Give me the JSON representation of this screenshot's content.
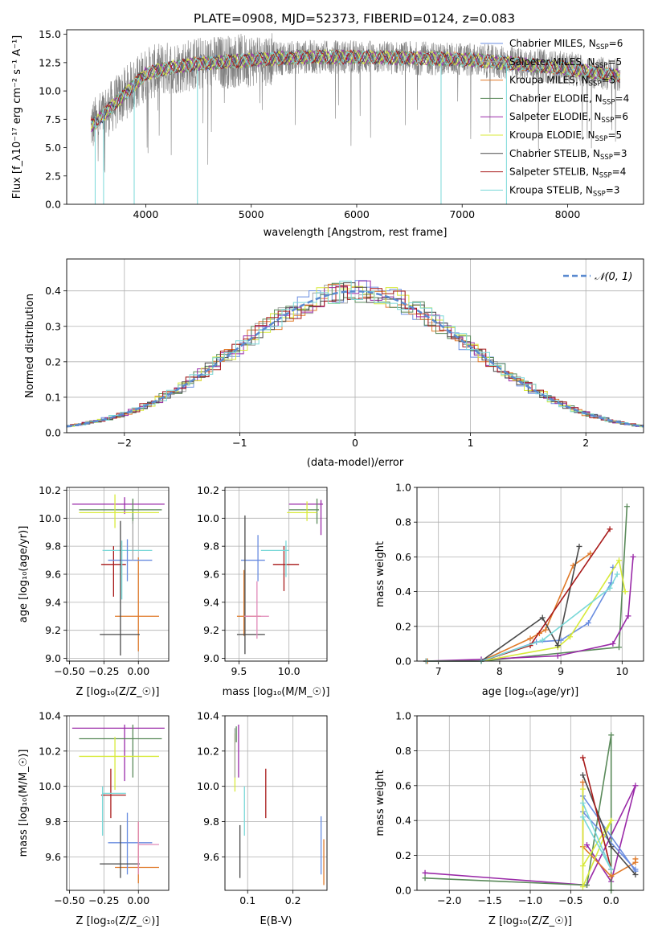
{
  "figure_title": "PLATE=0908, MJD=52373, FIBERID=0124, z=0.083",
  "colors": {
    "ch_miles": "#6a8de0",
    "sa_miles": "#a4a4a4",
    "kr_miles": "#e07a2a",
    "ch_elodie": "#5a8a5a",
    "sa_elodie": "#9a2aa8",
    "kr_elodie": "#d8ea3a",
    "ch_stelib": "#4a4a4a",
    "sa_stelib": "#a81a1a",
    "kr_stelib": "#7ad8d8",
    "spectrum": "#808080",
    "gaussian": "#5a8ad0"
  },
  "chart_data": [
    {
      "id": "spectrum",
      "type": "line",
      "title": "PLATE=0908, MJD=52373, FIBERID=0124, z=0.083",
      "xlabel": "wavelength [Angstrom, rest frame]",
      "ylabel": "Flux [f_λ10⁻¹⁷ erg cm⁻² s⁻¹ A⁻¹]",
      "xlim": [
        3250,
        8720
      ],
      "ylim": [
        0,
        15.4
      ],
      "xticks": [
        "4000",
        "5000",
        "6000",
        "7000",
        "8000"
      ],
      "yticks": [
        "0.0",
        "2.5",
        "5.0",
        "7.5",
        "10.0",
        "12.5",
        "15.0"
      ],
      "continuum": {
        "x": [
          3500,
          3700,
          3850,
          4000,
          4200,
          4500,
          4800,
          5100,
          5500,
          6000,
          6500,
          7000,
          7500,
          8000,
          8500
        ],
        "y": [
          7.0,
          8.8,
          10.2,
          11.5,
          12.0,
          12.4,
          12.6,
          12.8,
          13.0,
          13.0,
          12.9,
          12.8,
          12.4,
          12.0,
          11.3
        ]
      },
      "legend_position": "right",
      "legend": [
        {
          "name": "Chabrier MILES, N",
          "sub": "SSP",
          "suffix": "=6",
          "color": "#6a8de0"
        },
        {
          "name": "Salpeter MILES, N",
          "sub": "SSP",
          "suffix": "=5",
          "color": "#a4a4a4"
        },
        {
          "name": "Kroupa MILES, N",
          "sub": "SSP",
          "suffix": "=5",
          "color": "#e07a2a"
        },
        {
          "name": "Chabrier ELODIE, N",
          "sub": "SSP",
          "suffix": "=4",
          "color": "#5a8a5a"
        },
        {
          "name": "Salpeter ELODIE, N",
          "sub": "SSP",
          "suffix": "=6",
          "color": "#9a2aa8"
        },
        {
          "name": "Kroupa ELODIE, N",
          "sub": "SSP",
          "suffix": "=5",
          "color": "#d8ea3a"
        },
        {
          "name": "Chabrier STELIB, N",
          "sub": "SSP",
          "suffix": "=3",
          "color": "#4a4a4a"
        },
        {
          "name": "Salpeter STELIB, N",
          "sub": "SSP",
          "suffix": "=4",
          "color": "#a81a1a"
        },
        {
          "name": "Kroupa STELIB, N",
          "sub": "SSP",
          "suffix": "=3",
          "color": "#7ad8d8"
        }
      ]
    },
    {
      "id": "residuals",
      "type": "step",
      "xlabel": "(data-model)/error",
      "ylabel": "Normed distribution",
      "xlim": [
        -2.5,
        2.5
      ],
      "ylim": [
        0,
        0.49
      ],
      "grid": true,
      "xticks": [
        "−2",
        "−1",
        "0",
        "1",
        "2"
      ],
      "yticks": [
        "0.0",
        "0.1",
        "0.2",
        "0.3",
        "0.4"
      ],
      "legend_label": "𝒩(0, 1)",
      "bin_width": 0.1
    },
    {
      "id": "age_vs_Z",
      "type": "errorbar",
      "xlabel": "Z [log₁₀(Z/Z_☉)]",
      "ylabel": "age [log₁₀(age/yr)]",
      "xlim": [
        -0.52,
        0.22
      ],
      "ylim": [
        8.98,
        10.22
      ],
      "grid": true,
      "xticks": [
        "−0.50",
        "−0.25",
        "0.00"
      ],
      "yticks": [
        "9.0",
        "9.2",
        "9.4",
        "9.6",
        "9.8",
        "10.0",
        "10.2"
      ],
      "points": [
        {
          "c": "#9a2aa8",
          "x": -0.1,
          "y": 10.1,
          "xl": -0.48,
          "xh": 0.19,
          "yl": 10.03,
          "yh": 10.15
        },
        {
          "c": "#5a8a5a",
          "x": -0.04,
          "y": 10.06,
          "xl": -0.43,
          "xh": 0.17,
          "yl": 9.96,
          "yh": 10.14
        },
        {
          "c": "#d8ea3a",
          "x": -0.17,
          "y": 10.04,
          "xl": -0.43,
          "xh": 0.15,
          "yl": 9.93,
          "yh": 10.17
        },
        {
          "c": "#e07a2a",
          "x": 0.0,
          "y": 9.3,
          "xl": -0.17,
          "xh": 0.15,
          "yl": 9.05,
          "yh": 9.72
        },
        {
          "c": "#a81a1a",
          "x": -0.18,
          "y": 9.67,
          "xl": -0.27,
          "xh": -0.09,
          "yl": 9.44,
          "yh": 9.8
        },
        {
          "c": "#7ad8d8",
          "x": -0.12,
          "y": 9.77,
          "xl": -0.26,
          "xh": 0.1,
          "yl": 9.42,
          "yh": 9.84
        },
        {
          "c": "#6a8de0",
          "x": -0.08,
          "y": 9.7,
          "xl": -0.22,
          "xh": 0.1,
          "yl": 9.55,
          "yh": 9.85
        },
        {
          "c": "#4a4a4a",
          "x": -0.13,
          "y": 9.17,
          "xl": -0.28,
          "xh": 0.01,
          "yl": 9.02,
          "yh": 9.98
        },
        {
          "c": "#a4a4a4",
          "x": -0.04,
          "y": 9.85,
          "xl": -0.04,
          "xh": -0.04,
          "yl": 9.7,
          "yh": 9.98
        }
      ]
    },
    {
      "id": "age_vs_mass",
      "type": "errorbar",
      "xlabel": "mass [log₁₀(M/M_☉)]",
      "ylabel": "",
      "xlim": [
        9.36,
        10.38
      ],
      "ylim": [
        8.98,
        10.22
      ],
      "grid": true,
      "xticks": [
        "9.5",
        "10.0"
      ],
      "yticks": [
        "9.0",
        "9.2",
        "9.4",
        "9.6",
        "9.8",
        "10.0",
        "10.2"
      ],
      "points": [
        {
          "c": "#9a2aa8",
          "x": 10.32,
          "y": 10.1,
          "xl": 10.0,
          "xh": 10.34,
          "yl": 9.88,
          "yh": 10.13
        },
        {
          "c": "#5a8a5a",
          "x": 10.28,
          "y": 10.06,
          "xl": 10.0,
          "xh": 10.3,
          "yl": 9.96,
          "yh": 10.14
        },
        {
          "c": "#d8ea3a",
          "x": 10.18,
          "y": 10.04,
          "xl": 9.98,
          "xh": 10.28,
          "yl": 9.98,
          "yh": 10.12
        },
        {
          "c": "#e07a2a",
          "x": 9.55,
          "y": 9.3,
          "xl": 9.48,
          "xh": 9.72,
          "yl": 9.16,
          "yh": 9.63
        },
        {
          "c": "#a81a1a",
          "x": 9.95,
          "y": 9.67,
          "xl": 9.84,
          "xh": 10.1,
          "yl": 9.48,
          "yh": 9.8
        },
        {
          "c": "#7ad8d8",
          "x": 9.97,
          "y": 9.77,
          "xl": 9.72,
          "xh": 10.0,
          "yl": 9.58,
          "yh": 9.84
        },
        {
          "c": "#6a8de0",
          "x": 9.69,
          "y": 9.7,
          "xl": 9.52,
          "xh": 9.76,
          "yl": 9.55,
          "yh": 9.88
        },
        {
          "c": "#4a4a4a",
          "x": 9.56,
          "y": 9.17,
          "xl": 9.48,
          "xh": 9.76,
          "yl": 9.03,
          "yh": 10.02
        },
        {
          "c": "#e08ab8",
          "x": 9.68,
          "y": 9.3,
          "xl": 9.55,
          "xh": 9.8,
          "yl": 9.14,
          "yh": 9.55
        }
      ]
    },
    {
      "id": "weight_vs_age",
      "type": "line",
      "xlabel": "age [log₁₀(age/yr)]",
      "ylabel": "mass weight",
      "xlim": [
        6.65,
        10.35
      ],
      "ylim": [
        0,
        1.0
      ],
      "grid": true,
      "xticks": [
        "7",
        "8",
        "9",
        "10"
      ],
      "yticks": [
        "0.0",
        "0.2",
        "0.4",
        "0.6",
        "0.8",
        "1.0"
      ],
      "series": [
        {
          "c": "#6a8de0",
          "x": [
            6.8,
            7.7,
            8.6,
            9.0,
            9.45,
            9.82,
            9.85
          ],
          "y": [
            0.0,
            0.0,
            0.11,
            0.12,
            0.22,
            0.45,
            0.54
          ]
        },
        {
          "c": "#e07a2a",
          "x": [
            6.82,
            7.7,
            8.5,
            8.65,
            8.75,
            9.2,
            9.48
          ],
          "y": [
            0.0,
            0.0,
            0.13,
            0.16,
            0.18,
            0.55,
            0.62
          ]
        },
        {
          "c": "#5a8a5a",
          "x": [
            6.8,
            7.7,
            9.95,
            10.08
          ],
          "y": [
            0.0,
            0.0,
            0.08,
            0.89
          ]
        },
        {
          "c": "#9a2aa8",
          "x": [
            6.8,
            7.7,
            8.95,
            9.85,
            10.1,
            10.18
          ],
          "y": [
            0.0,
            0.01,
            0.03,
            0.1,
            0.26,
            0.6
          ]
        },
        {
          "c": "#d8ea3a",
          "x": [
            6.8,
            7.7,
            8.95,
            9.15,
            9.95,
            10.05
          ],
          "y": [
            0.0,
            0.0,
            0.08,
            0.14,
            0.58,
            0.4
          ]
        },
        {
          "c": "#4a4a4a",
          "x": [
            6.8,
            7.7,
            8.7,
            8.95,
            9.3
          ],
          "y": [
            0.0,
            0.0,
            0.25,
            0.09,
            0.66
          ]
        },
        {
          "c": "#a81a1a",
          "x": [
            6.8,
            7.7,
            8.5,
            9.8
          ],
          "y": [
            0.0,
            0.0,
            0.09,
            0.76
          ]
        },
        {
          "c": "#7ad8d8",
          "x": [
            6.8,
            7.7,
            8.7,
            9.8,
            9.92
          ],
          "y": [
            0.0,
            0.0,
            0.12,
            0.42,
            0.5
          ]
        }
      ]
    },
    {
      "id": "mass_vs_Z",
      "type": "errorbar",
      "xlabel": "Z [log₁₀(Z/Z_☉)]",
      "ylabel": "mass [log₁₀(M/M_☉)]",
      "xlim": [
        -0.52,
        0.22
      ],
      "ylim": [
        9.41,
        10.4
      ],
      "grid": true,
      "xticks": [
        "−0.50",
        "−0.25",
        "0.00"
      ],
      "yticks": [
        "9.6",
        "9.8",
        "10.0",
        "10.2",
        "10.4"
      ],
      "points": [
        {
          "c": "#9a2aa8",
          "x": -0.1,
          "y": 10.33,
          "xl": -0.48,
          "xh": 0.19,
          "yl": 10.03,
          "yh": 10.35
        },
        {
          "c": "#5a8a5a",
          "x": -0.04,
          "y": 10.27,
          "xl": -0.43,
          "xh": 0.17,
          "yl": 10.05,
          "yh": 10.35
        },
        {
          "c": "#d8ea3a",
          "x": -0.17,
          "y": 10.17,
          "xl": -0.43,
          "xh": 0.15,
          "yl": 9.98,
          "yh": 10.28
        },
        {
          "c": "#e07a2a",
          "x": 0.0,
          "y": 9.54,
          "xl": -0.17,
          "xh": 0.15,
          "yl": 9.45,
          "yh": 9.8
        },
        {
          "c": "#a81a1a",
          "x": -0.2,
          "y": 9.95,
          "xl": -0.27,
          "xh": -0.09,
          "yl": 9.82,
          "yh": 10.1
        },
        {
          "c": "#7ad8d8",
          "x": -0.26,
          "y": 9.96,
          "xl": -0.26,
          "xh": -0.09,
          "yl": 9.72,
          "yh": 10.0
        },
        {
          "c": "#6a8de0",
          "x": -0.08,
          "y": 9.68,
          "xl": -0.22,
          "xh": 0.1,
          "yl": 9.5,
          "yh": 9.85
        },
        {
          "c": "#4a4a4a",
          "x": -0.13,
          "y": 9.56,
          "xl": -0.28,
          "xh": 0.01,
          "yl": 9.48,
          "yh": 9.78
        },
        {
          "c": "#e08ab8",
          "x": 0.0,
          "y": 9.67,
          "xl": 0.0,
          "xh": 0.15,
          "yl": 9.5,
          "yh": 9.8
        }
      ]
    },
    {
      "id": "mass_vs_EBV",
      "type": "errorbar",
      "xlabel": "E(B-V)",
      "ylabel": "",
      "xlim": [
        0.05,
        0.275
      ],
      "ylim": [
        9.41,
        10.4
      ],
      "grid": true,
      "xticks": [
        "0.1",
        "0.2"
      ],
      "yticks": [
        "9.6",
        "9.8",
        "10.0",
        "10.2",
        "10.4"
      ],
      "points": [
        {
          "c": "#9a2aa8",
          "x": 0.08,
          "y": 10.2,
          "xl": 0.08,
          "xh": 0.08,
          "yl": 10.05,
          "yh": 10.35
        },
        {
          "c": "#5a8a5a",
          "x": 0.075,
          "y": 10.3,
          "xl": 0.075,
          "xh": 0.075,
          "yl": 10.25,
          "yh": 10.34
        },
        {
          "c": "#d8ea3a",
          "x": 0.072,
          "y": 10.12,
          "xl": 0.072,
          "xh": 0.072,
          "yl": 9.97,
          "yh": 10.3
        },
        {
          "c": "#a4a4a4",
          "x": 0.072,
          "y": 10.2,
          "xl": 0.072,
          "xh": 0.072,
          "yl": 10.05,
          "yh": 10.33
        },
        {
          "c": "#a81a1a",
          "x": 0.14,
          "y": 9.95,
          "xl": 0.14,
          "xh": 0.14,
          "yl": 9.82,
          "yh": 10.1
        },
        {
          "c": "#7ad8d8",
          "x": 0.093,
          "y": 9.86,
          "xl": 0.093,
          "xh": 0.093,
          "yl": 9.72,
          "yh": 10.0
        },
        {
          "c": "#4a4a4a",
          "x": 0.083,
          "y": 9.62,
          "xl": 0.083,
          "xh": 0.083,
          "yl": 9.48,
          "yh": 9.78
        },
        {
          "c": "#6a8de0",
          "x": 0.262,
          "y": 9.67,
          "xl": 0.262,
          "xh": 0.262,
          "yl": 9.5,
          "yh": 9.83
        },
        {
          "c": "#e07a2a",
          "x": 0.268,
          "y": 9.57,
          "xl": 0.268,
          "xh": 0.268,
          "yl": 9.44,
          "yh": 9.7
        }
      ]
    },
    {
      "id": "weight_vs_Z",
      "type": "line",
      "xlabel": "Z [log₁₀(Z/Z_☉)]",
      "ylabel": "mass weight",
      "xlim": [
        -2.4,
        0.4
      ],
      "ylim": [
        0,
        1.0
      ],
      "grid": true,
      "xticks": [
        "−2.0",
        "−1.5",
        "−1.0",
        "−0.5",
        "0.0"
      ],
      "yticks": [
        "0.0",
        "0.2",
        "0.4",
        "0.6",
        "0.8",
        "1.0"
      ],
      "series": [
        {
          "c": "#9a2aa8",
          "x": [
            -2.3,
            -0.3,
            0.3,
            0.0,
            -0.3
          ],
          "y": [
            0.1,
            0.03,
            0.6,
            0.05,
            0.26
          ]
        },
        {
          "c": "#5a8a5a",
          "x": [
            -2.3,
            -0.3,
            0.0,
            0.0,
            0.0
          ],
          "y": [
            0.07,
            0.03,
            0.89,
            0.08,
            0.0
          ]
        },
        {
          "c": "#e07a2a",
          "x": [
            -0.35,
            -0.35,
            0.0,
            0.3,
            0.3
          ],
          "y": [
            0.62,
            0.25,
            0.08,
            0.16,
            0.18
          ]
        },
        {
          "c": "#6a8de0",
          "x": [
            -0.35,
            0.3,
            0.3,
            -0.35
          ],
          "y": [
            0.54,
            0.11,
            0.12,
            0.45
          ]
        },
        {
          "c": "#d8ea3a",
          "x": [
            -0.35,
            -0.35,
            0.0,
            -0.35
          ],
          "y": [
            0.58,
            0.02,
            0.4,
            0.14
          ]
        },
        {
          "c": "#4a4a4a",
          "x": [
            -0.35,
            0.0,
            0.3
          ],
          "y": [
            0.66,
            0.25,
            0.09
          ]
        },
        {
          "c": "#a81a1a",
          "x": [
            -0.35,
            0.0
          ],
          "y": [
            0.76,
            0.12
          ]
        },
        {
          "c": "#7ad8d8",
          "x": [
            -0.35,
            0.0,
            -0.35
          ],
          "y": [
            0.5,
            0.12,
            0.42
          ]
        }
      ]
    }
  ]
}
